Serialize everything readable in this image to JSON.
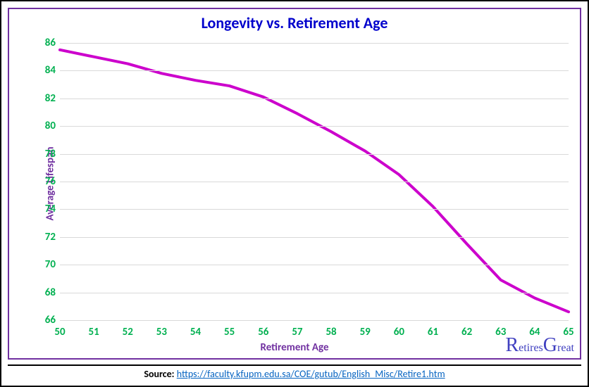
{
  "chart": {
    "type": "line",
    "title": "Longevity vs. Retirement Age",
    "title_color": "#0000cc",
    "title_fontsize": 22,
    "xlabel": "Retirement Age",
    "ylabel": "Average Lifespan",
    "axis_label_color": "#7030a0",
    "axis_label_fontsize": 15,
    "tick_color": "#00b050",
    "tick_fontsize": 15,
    "grid_color": "#d9d9d9",
    "border_color": "#7030a0",
    "background_color": "#ffffff",
    "line_color": "#cc00cc",
    "line_width": 4,
    "xlim": [
      50,
      65
    ],
    "ylim": [
      66,
      86
    ],
    "xtick_step": 1,
    "ytick_step": 2,
    "x_values": [
      50,
      51,
      52,
      53,
      54,
      55,
      56,
      57,
      58,
      59,
      60,
      61,
      62,
      63,
      64,
      65
    ],
    "y_values": [
      85.5,
      85.0,
      84.5,
      83.8,
      83.3,
      82.9,
      82.1,
      80.9,
      79.6,
      78.2,
      76.5,
      74.2,
      71.5,
      68.9,
      67.6,
      66.6
    ],
    "xticks": [
      50,
      51,
      52,
      53,
      54,
      55,
      56,
      57,
      58,
      59,
      60,
      61,
      62,
      63,
      64,
      65
    ],
    "yticks": [
      66,
      68,
      70,
      72,
      74,
      76,
      78,
      80,
      82,
      84,
      86
    ]
  },
  "logo": {
    "text_r": "R",
    "text_etires": "etires",
    "text_g": "G",
    "text_reat": "reat",
    "color": "#4040c0"
  },
  "source": {
    "label": "Source: ",
    "url_text": "https://faculty.kfupm.edu.sa/COE/gutub/English_Misc/Retire1.htm",
    "link_color": "#0563c1"
  },
  "frame": {
    "outer_border_color": "#000000"
  }
}
